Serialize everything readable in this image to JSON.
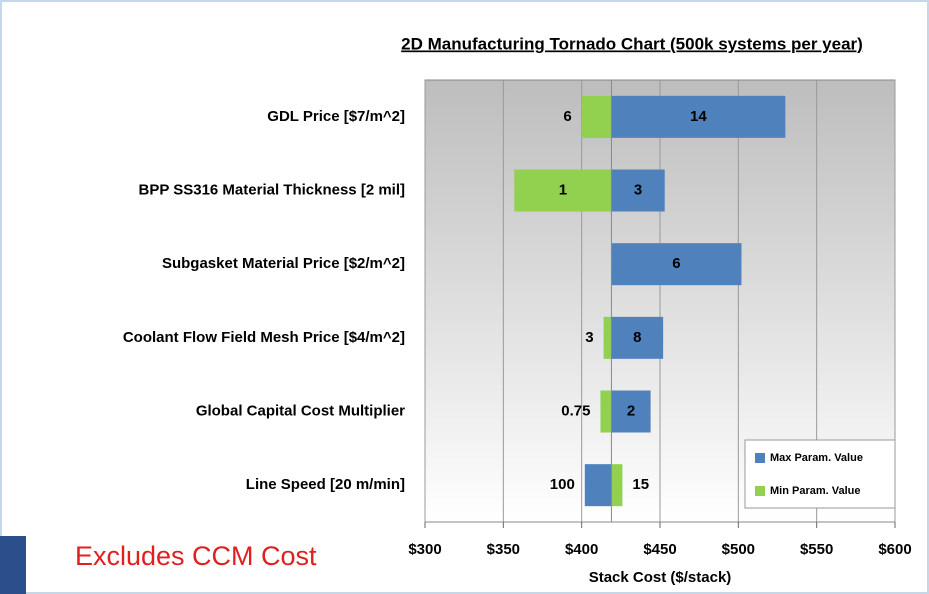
{
  "chart_data": {
    "type": "tornado",
    "title": "2D Manufacturing Tornado Chart (500k systems per year)",
    "x_label": "Stack Cost ($/stack)",
    "annotation": "Excludes CCM Cost",
    "categories": [
      "GDL Price [$7/m^2]",
      "BPP SS316 Material Thickness [2 mil]",
      "Subgasket Material Price [$2/m^2]",
      "Coolant Flow Field Mesh Price [$4/m^2]",
      "Global Capital Cost Multiplier",
      "Line Speed [20 m/min]"
    ],
    "base": 419,
    "series": [
      {
        "name": "Max Param. Value",
        "color": "#4f81bd",
        "values": [
          530,
          453,
          502,
          452,
          444,
          402
        ],
        "labels": [
          "14",
          "3",
          "6",
          "8",
          "2",
          "100"
        ]
      },
      {
        "name": "Min Param. Value",
        "color": "#92d050",
        "values": [
          400,
          357,
          null,
          414,
          412,
          426
        ],
        "labels": [
          "6",
          "1",
          null,
          "3",
          "0.75",
          "15"
        ]
      }
    ],
    "xlim": [
      300,
      600
    ],
    "xticks": [
      {
        "value": 300,
        "label": "$300"
      },
      {
        "value": 350,
        "label": "$350"
      },
      {
        "value": 400,
        "label": "$400"
      },
      {
        "value": 450,
        "label": "$450"
      },
      {
        "value": 500,
        "label": "$500"
      },
      {
        "value": 550,
        "label": "$550"
      },
      {
        "value": 600,
        "label": "$600"
      }
    ],
    "grid": true,
    "legend": "lower right"
  }
}
